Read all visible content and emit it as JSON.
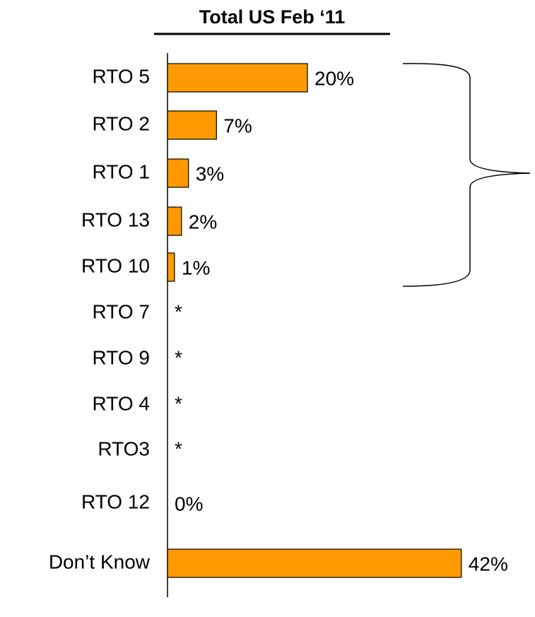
{
  "chart_data": {
    "type": "bar",
    "orientation": "horizontal",
    "title": "Total US Feb ‘11",
    "categories": [
      "RTO 5",
      "RTO 2",
      "RTO 1",
      "RTO 13",
      "RTO 10",
      "RTO 7",
      "RTO 9",
      "RTO 4",
      "RTO3",
      "RTO 12",
      null,
      "Don’t Know"
    ],
    "values": [
      20,
      7,
      3,
      2,
      1,
      null,
      null,
      null,
      null,
      0,
      null,
      42
    ],
    "value_labels": [
      "20%",
      "7%",
      "3%",
      "2%",
      "1%",
      "*",
      "*",
      "*",
      "*",
      "0%",
      null,
      "42%"
    ],
    "color": "#ff9900"
  }
}
